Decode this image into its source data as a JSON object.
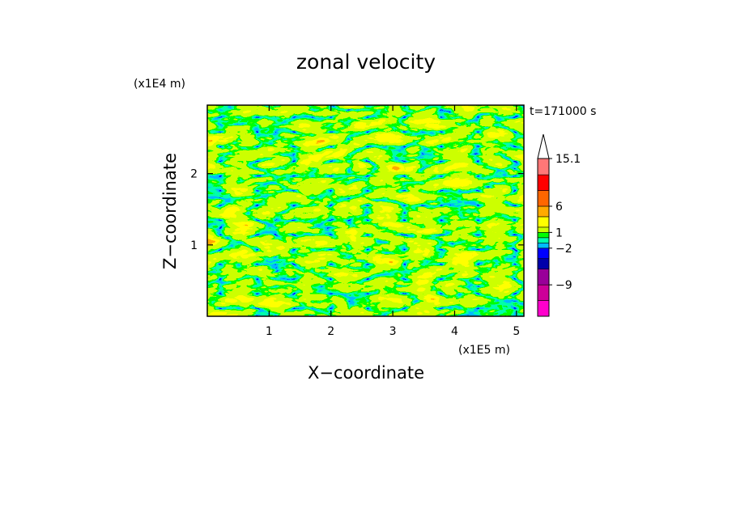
{
  "chart_data": {
    "type": "heatmap",
    "title": "zonal velocity",
    "xlabel": "X−coordinate",
    "ylabel": "Z−coordinate",
    "x_unit": "(x1E5 m)",
    "y_unit": "(x1E4 m)",
    "time_label": "t=171000 s",
    "xlim": [
      0,
      5.12
    ],
    "ylim": [
      0,
      2.96
    ],
    "x_ticks": [
      "1",
      "2",
      "3",
      "4",
      "5"
    ],
    "y_ticks": [
      "1",
      "2"
    ],
    "grid": false,
    "colorbar": {
      "tick_labels": [
        "15.1",
        "6",
        "1",
        "−2",
        "−9"
      ],
      "tick_values": [
        15.1,
        6,
        1,
        -2,
        -9
      ],
      "min": -12,
      "max": 15.1,
      "extend": "max",
      "levels": [
        -15,
        -12,
        -9,
        -6,
        -4,
        -2,
        -1,
        0,
        1,
        2,
        4,
        6,
        9,
        12,
        15.1
      ],
      "colors": [
        "#ff00cc",
        "#cc0099",
        "#990099",
        "#0000aa",
        "#0000ff",
        "#00bbff",
        "#00ffaa",
        "#00ff00",
        "#ccff00",
        "#ffff00",
        "#ffaa00",
        "#ff6600",
        "#ff0000",
        "#ff7777",
        "#ffbbbb"
      ]
    }
  }
}
